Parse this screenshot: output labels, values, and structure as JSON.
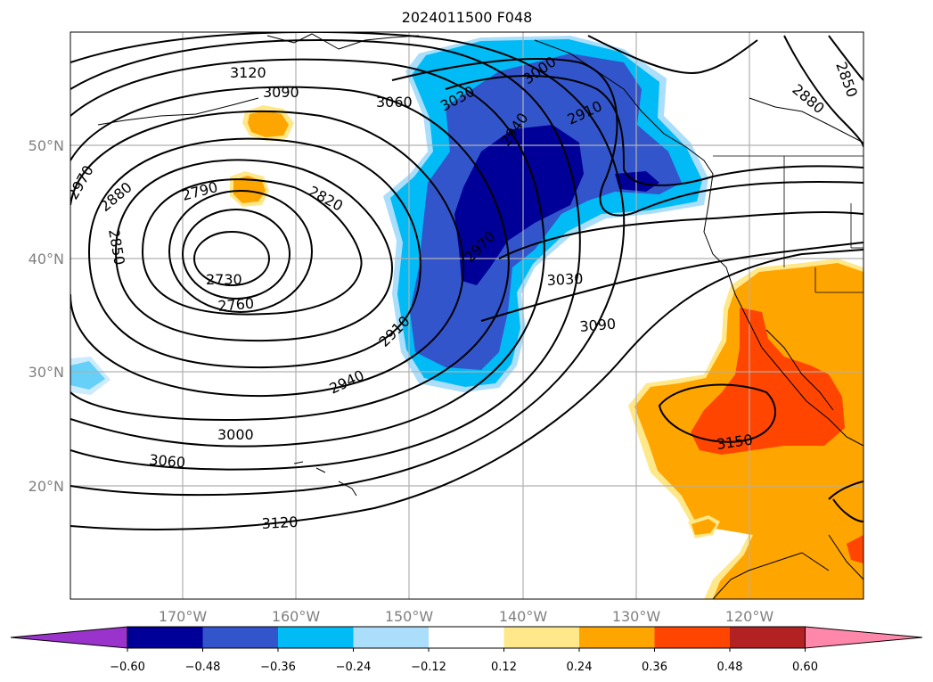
{
  "title": "2024011500 F048",
  "lon_labels": [
    "170°W",
    "160°W",
    "150°W",
    "140°W",
    "130°W",
    "120°W"
  ],
  "lat_labels": [
    "50°N",
    "40°N",
    "30°N",
    "20°N"
  ],
  "colorbar": {
    "ticks": [
      "−0.60",
      "−0.48",
      "−0.36",
      "−0.24",
      "−0.12",
      "0.12",
      "0.24",
      "0.36",
      "0.48",
      "0.60"
    ],
    "colors": [
      "#9933cc",
      "#000099",
      "#3355cc",
      "#00bbf5",
      "#aadefa",
      "#ffffff",
      "#ffe88a",
      "#ffa500",
      "#ff4500",
      "#b22222",
      "#ff88aa"
    ]
  },
  "contour_labels": [
    "3120",
    "3090",
    "3060",
    "3030",
    "3000",
    "2910",
    "2940",
    "2970",
    "2880",
    "2850",
    "2790",
    "2820",
    "2730",
    "2760",
    "2910",
    "2940",
    "3000",
    "3060",
    "3120",
    "3030",
    "3090",
    "3150",
    "2850",
    "2880",
    "2970"
  ]
}
